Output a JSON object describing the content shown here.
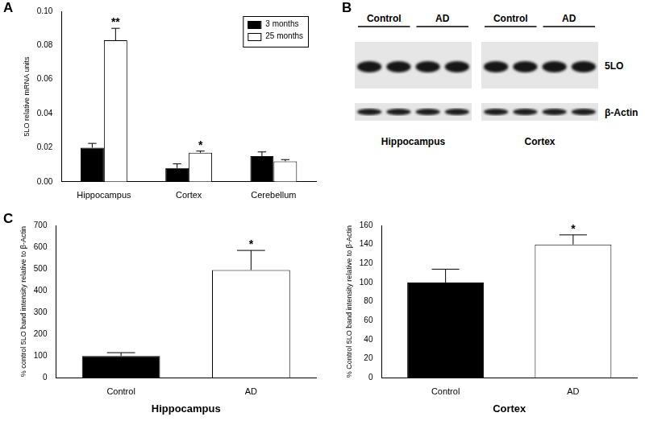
{
  "chart_data": [
    {
      "type": "bar",
      "panel": "A",
      "categories": [
        "Hippocampus",
        "Cortex",
        "Cerebellum"
      ],
      "ylabel": "5LO relative mRNA units",
      "series": [
        {
          "name": "3 months",
          "color": "#000000",
          "values": [
            0.02,
            0.008,
            0.015
          ],
          "errors": [
            0.0025,
            0.0025,
            0.0025
          ]
        },
        {
          "name": "25 months",
          "color": "#ffffff",
          "values": [
            0.083,
            0.017,
            0.012
          ],
          "errors": [
            0.007,
            0.001,
            0.001
          ]
        }
      ],
      "annotations": [
        {
          "series": "25 months",
          "category": "Hippocampus",
          "text": "**"
        },
        {
          "series": "25 months",
          "category": "Cortex",
          "text": "*"
        }
      ],
      "ylim": [
        0,
        0.1
      ],
      "yticks": [
        {
          "value": 0,
          "label": "0.00"
        },
        {
          "value": 0.02,
          "label": "0.02"
        },
        {
          "value": 0.04,
          "label": "0.04"
        },
        {
          "value": 0.06,
          "label": "0.06"
        },
        {
          "value": 0.08,
          "label": "0.08"
        },
        {
          "value": 0.1,
          "label": "0.10"
        }
      ],
      "grid": false,
      "legend": "upper right"
    },
    {
      "type": "bar",
      "panel": "C",
      "categories": [
        "Control",
        "AD"
      ],
      "xlabel": "Hippocampus",
      "ylabel": "% control 5LO band intensity relative to β-Actin",
      "values": [
        100,
        495
      ],
      "errors": [
        15,
        90
      ],
      "colors": [
        "#000000",
        "#ffffff"
      ],
      "annotations": [
        {
          "category": "AD",
          "text": "*"
        }
      ],
      "ylim": [
        0,
        700
      ],
      "yticks": [
        0,
        100,
        200,
        300,
        400,
        500,
        600,
        700
      ],
      "grid": false
    },
    {
      "type": "bar",
      "categories": [
        "Control",
        "AD"
      ],
      "xlabel": "Cortex",
      "ylabel": "% Control 5LO band intensity relative to β-Actin",
      "values": [
        100,
        140
      ],
      "errors": [
        14,
        10
      ],
      "colors": [
        "#000000",
        "#ffffff"
      ],
      "annotations": [
        {
          "category": "AD",
          "text": "*"
        }
      ],
      "ylim": [
        0,
        160
      ],
      "yticks": [
        0,
        20,
        40,
        60,
        80,
        100,
        120,
        140,
        160
      ],
      "grid": false
    }
  ],
  "blot": {
    "panel": "B",
    "blots": [
      {
        "tissue": "Hippocampus",
        "groups": [
          "Control",
          "AD"
        ]
      },
      {
        "tissue": "Cortex",
        "groups": [
          "Control",
          "AD"
        ]
      }
    ],
    "rows": [
      "5LO",
      "β-Actin"
    ]
  }
}
